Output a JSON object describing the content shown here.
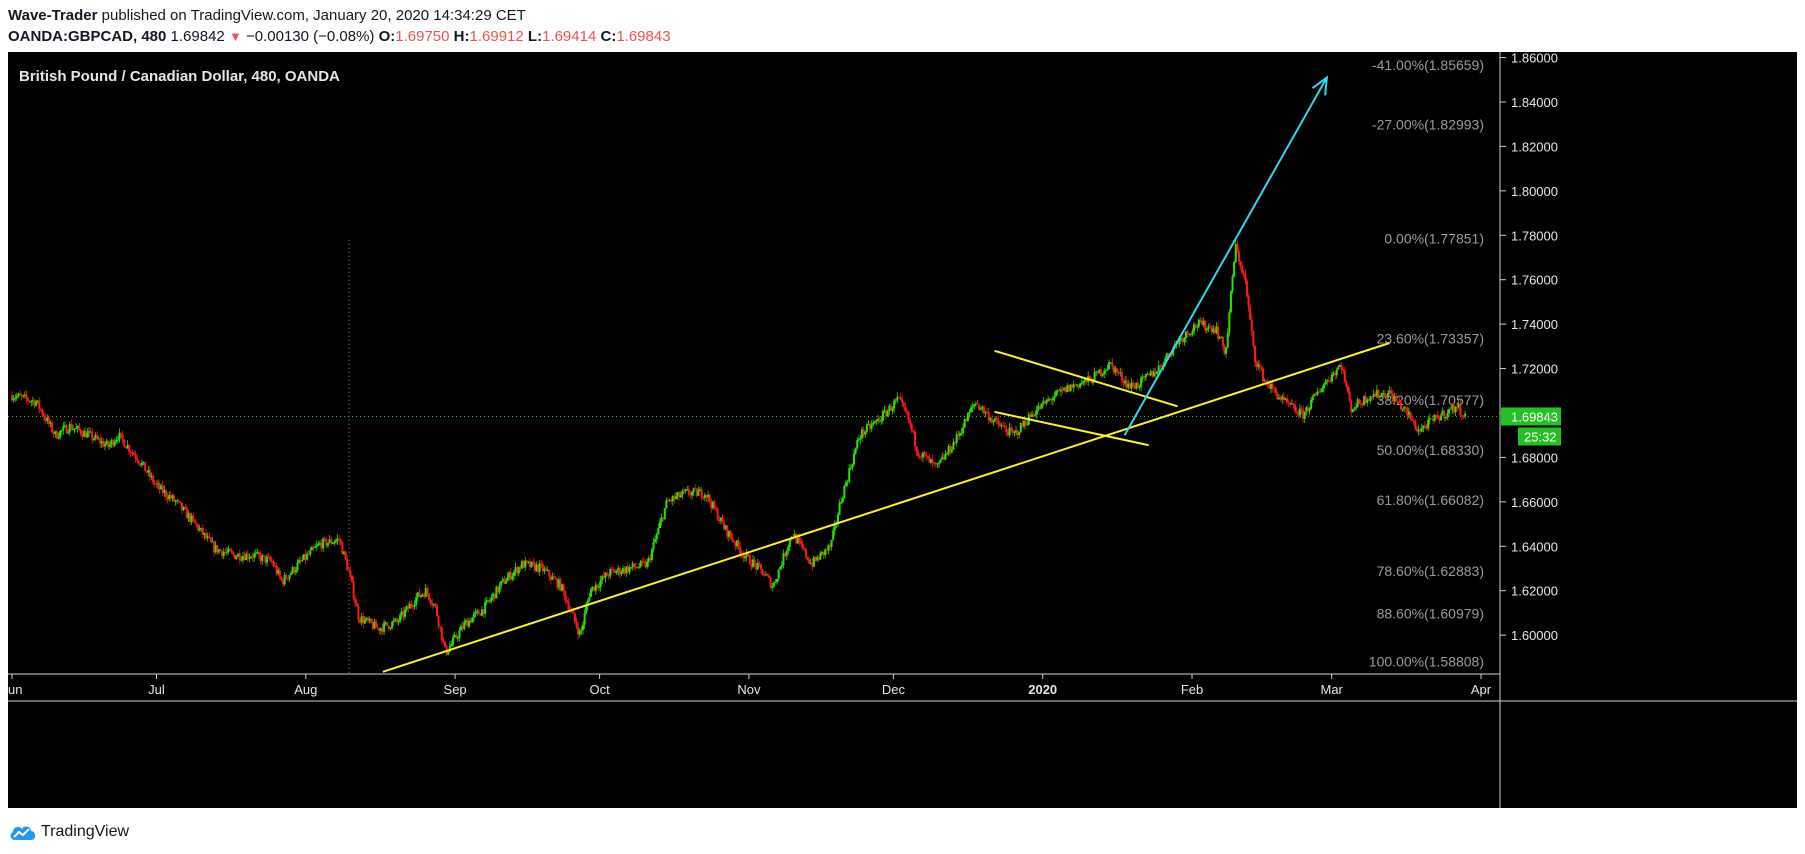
{
  "header": {
    "author": "Wave-Trader",
    "published": "published on TradingView.com, January 20, 2020 14:34:29 CET",
    "symbol": "OANDA:GBPCAD, 480",
    "last": "1.69842",
    "change_arrow": "▼",
    "change": "−0.00130 (−0.08%)",
    "o_label": "O:",
    "o_value": "1.69750",
    "h_label": "H:",
    "h_value": "1.69912",
    "l_label": "L:",
    "l_value": "1.69414",
    "c_label": "C:",
    "c_value": "1.69843"
  },
  "footer": {
    "brand": "TradingView",
    "logo_icon": "tradingview-cloud-icon"
  },
  "colors": {
    "background": "#000000",
    "bull": "#26e600",
    "bear": "#ff1a1a",
    "trendline": "#ffee33",
    "arrow": "#33d6f0",
    "fib_text": "#9b9b9b",
    "price_label": "#26c026"
  },
  "chart_data": {
    "type": "candlestick",
    "title": "British Pound / Canadian Dollar, 480, OANDA",
    "x_axis": {
      "ticks": [
        {
          "label": "Jun",
          "t": 0
        },
        {
          "label": "Jul",
          "t": 30
        },
        {
          "label": "Aug",
          "t": 61
        },
        {
          "label": "Sep",
          "t": 92
        },
        {
          "label": "Oct",
          "t": 122
        },
        {
          "label": "Nov",
          "t": 153
        },
        {
          "label": "Dec",
          "t": 183
        },
        {
          "label": "2020",
          "t": 214,
          "bold": true
        },
        {
          "label": "Feb",
          "t": 245
        },
        {
          "label": "Mar",
          "t": 274
        },
        {
          "label": "Apr",
          "t": 305
        }
      ],
      "range_days": [
        0,
        305
      ],
      "unit": "days since Jun 1 2019"
    },
    "y_axis": {
      "ticks": [
        "1.60000",
        "1.62000",
        "1.64000",
        "1.66000",
        "1.68000",
        "1.70000",
        "1.72000",
        "1.74000",
        "1.76000",
        "1.78000",
        "1.80000",
        "1.82000",
        "1.84000",
        "1.86000"
      ],
      "ylim": [
        1.5825,
        1.8625
      ]
    },
    "price_path": [
      [
        0,
        1.708
      ],
      [
        5,
        1.705
      ],
      [
        9,
        1.69
      ],
      [
        12,
        1.694
      ],
      [
        16,
        1.69
      ],
      [
        20,
        1.685
      ],
      [
        22,
        1.69
      ],
      [
        26,
        1.68
      ],
      [
        30,
        1.667
      ],
      [
        34,
        1.66
      ],
      [
        38,
        1.65
      ],
      [
        42,
        1.639
      ],
      [
        46,
        1.636
      ],
      [
        50,
        1.636
      ],
      [
        54,
        1.633
      ],
      [
        56,
        1.624
      ],
      [
        60,
        1.633
      ],
      [
        64,
        1.641
      ],
      [
        68,
        1.643
      ],
      [
        70,
        1.628
      ],
      [
        72,
        1.608
      ],
      [
        76,
        1.603
      ],
      [
        80,
        1.606
      ],
      [
        84,
        1.617
      ],
      [
        86,
        1.62
      ],
      [
        88,
        1.612
      ],
      [
        90,
        1.592
      ],
      [
        94,
        1.605
      ],
      [
        98,
        1.612
      ],
      [
        102,
        1.624
      ],
      [
        106,
        1.632
      ],
      [
        110,
        1.63
      ],
      [
        114,
        1.622
      ],
      [
        116,
        1.611
      ],
      [
        118,
        1.6
      ],
      [
        120,
        1.62
      ],
      [
        124,
        1.628
      ],
      [
        128,
        1.63
      ],
      [
        132,
        1.632
      ],
      [
        136,
        1.66
      ],
      [
        140,
        1.664
      ],
      [
        144,
        1.664
      ],
      [
        148,
        1.648
      ],
      [
        152,
        1.636
      ],
      [
        156,
        1.628
      ],
      [
        158,
        1.622
      ],
      [
        162,
        1.646
      ],
      [
        166,
        1.632
      ],
      [
        170,
        1.64
      ],
      [
        172,
        1.66
      ],
      [
        176,
        1.69
      ],
      [
        180,
        1.697
      ],
      [
        184,
        1.706
      ],
      [
        186,
        1.698
      ],
      [
        188,
        1.683
      ],
      [
        192,
        1.675
      ],
      [
        196,
        1.688
      ],
      [
        200,
        1.705
      ],
      [
        204,
        1.696
      ],
      [
        208,
        1.69
      ],
      [
        212,
        1.7
      ],
      [
        216,
        1.707
      ],
      [
        220,
        1.712
      ],
      [
        224,
        1.715
      ],
      [
        228,
        1.722
      ],
      [
        232,
        1.712
      ],
      [
        234,
        1.713
      ],
      [
        238,
        1.72
      ],
      [
        242,
        1.732
      ],
      [
        246,
        1.74
      ],
      [
        250,
        1.738
      ],
      [
        252,
        1.727
      ],
      [
        254,
        1.775
      ],
      [
        256,
        1.76
      ],
      [
        258,
        1.725
      ],
      [
        260,
        1.715
      ],
      [
        264,
        1.705
      ],
      [
        268,
        1.699
      ],
      [
        272,
        1.712
      ],
      [
        276,
        1.722
      ],
      [
        278,
        1.702
      ],
      [
        282,
        1.708
      ],
      [
        286,
        1.709
      ],
      [
        290,
        1.699
      ],
      [
        292,
        1.692
      ],
      [
        296,
        1.698
      ],
      [
        300,
        1.703
      ],
      [
        302,
        1.698
      ]
    ],
    "dotted_vline_t": 70,
    "last_price": "1.69843",
    "countdown": "25:32",
    "fib_levels": [
      {
        "label": "-41.00%(1.85659)",
        "price": 1.85659
      },
      {
        "label": "-27.00%(1.82993)",
        "price": 1.82993
      },
      {
        "label": "0.00%(1.77851)",
        "price": 1.77851
      },
      {
        "label": "23.60%(1.73357)",
        "price": 1.73357
      },
      {
        "label": "38.20%(1.70577)",
        "price": 1.70577
      },
      {
        "label": "50.00%(1.68330)",
        "price": 1.6833
      },
      {
        "label": "61.80%(1.66082)",
        "price": 1.66082
      },
      {
        "label": "78.60%(1.62883)",
        "price": 1.62883
      },
      {
        "label": "88.60%(1.60979)",
        "price": 1.60979
      },
      {
        "label": "100.00%(1.58808)",
        "price": 1.58808
      }
    ],
    "drawings": {
      "trendlines": [
        {
          "from": [
            77,
            1.5835
          ],
          "to": [
            286,
            1.7315
          ]
        },
        {
          "from": [
            204,
            1.728
          ],
          "to": [
            242,
            1.703
          ]
        },
        {
          "from": [
            204,
            1.7005
          ],
          "to": [
            236,
            1.6855
          ]
        }
      ],
      "arrow": {
        "from": [
          231,
          1.69
        ],
        "to": [
          273,
          1.851
        ]
      }
    }
  }
}
